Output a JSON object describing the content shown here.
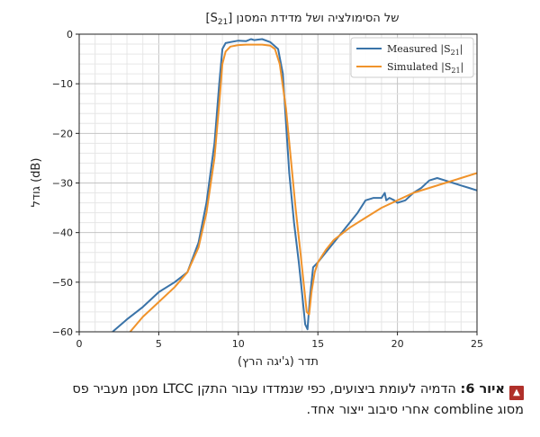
{
  "chart_data": {
    "type": "line",
    "title_main": "של הסימולציה ושל מדידת המסנן",
    "title_sym": "[S",
    "title_sub": "21",
    "title_close": "]",
    "xlabel": "תדר (ג'יגה הרץ)",
    "ylabel": "גודל (dB)",
    "xlim": [
      0,
      25
    ],
    "ylim": [
      -60,
      0
    ],
    "xticks": [
      0,
      5,
      10,
      15,
      20,
      25
    ],
    "yticks": [
      0,
      -10,
      -20,
      -30,
      -40,
      -50,
      -60
    ],
    "grid": true,
    "legend_position": "top-right",
    "series": [
      {
        "name": "Measured |S21|",
        "legend_prefix": "Measured |S",
        "legend_sub": "21",
        "legend_suffix": "|",
        "color": "#3a73a8",
        "x": [
          2.1,
          3.0,
          4.0,
          5.0,
          6.0,
          6.8,
          7.5,
          8.0,
          8.5,
          8.8,
          9.0,
          9.2,
          9.5,
          10.0,
          10.5,
          10.8,
          11.0,
          11.2,
          11.5,
          12.0,
          12.5,
          12.8,
          13.0,
          13.2,
          13.5,
          13.8,
          14.0,
          14.2,
          14.35,
          14.5,
          14.7,
          15.0,
          15.5,
          16.0,
          16.5,
          17.0,
          17.5,
          18.0,
          18.5,
          19.0,
          19.2,
          19.3,
          19.5,
          19.8,
          20.0,
          20.5,
          21.0,
          21.5,
          22.0,
          22.5,
          23.0,
          23.5,
          24.0,
          24.5,
          25.0
        ],
        "y": [
          -60,
          -57.5,
          -55,
          -52,
          -50,
          -48,
          -42,
          -34,
          -22,
          -10,
          -3,
          -1.8,
          -1.6,
          -1.3,
          -1.4,
          -1.0,
          -1.2,
          -1.1,
          -1.0,
          -1.6,
          -3,
          -8,
          -18,
          -28,
          -38,
          -46,
          -52,
          -58.5,
          -59.5,
          -53,
          -47,
          -46,
          -44,
          -42,
          -40,
          -38,
          -36,
          -33.5,
          -33,
          -33,
          -32,
          -33.5,
          -33,
          -33.5,
          -34,
          -33.5,
          -32,
          -31,
          -29.5,
          -29,
          -29.5,
          -30,
          -30.5,
          -31,
          -31.5
        ]
      },
      {
        "name": "Simulated |S21|",
        "legend_prefix": "Simulated |S",
        "legend_sub": "21",
        "legend_suffix": "|",
        "color": "#f0932b",
        "x": [
          3.2,
          4.0,
          5.0,
          6.0,
          6.8,
          7.5,
          8.0,
          8.5,
          8.8,
          9.0,
          9.2,
          9.5,
          10.0,
          10.5,
          11.0,
          11.5,
          12.0,
          12.3,
          12.6,
          13.0,
          13.3,
          13.6,
          13.9,
          14.1,
          14.3,
          14.45,
          14.6,
          14.8,
          15.0,
          15.5,
          16.0,
          17.0,
          18.0,
          19.0,
          20.0,
          21.0,
          22.0,
          23.0,
          24.0,
          25.0
        ],
        "y": [
          -60,
          -57,
          -54,
          -51,
          -48,
          -43,
          -36,
          -25,
          -14,
          -6,
          -3.5,
          -2.5,
          -2.2,
          -2.1,
          -2.1,
          -2.1,
          -2.3,
          -3,
          -6,
          -15,
          -25,
          -35,
          -44,
          -50,
          -56,
          -56.5,
          -52,
          -48,
          -46,
          -43.5,
          -41.5,
          -39,
          -37,
          -35,
          -33.5,
          -32,
          -31,
          -30,
          -29,
          -28
        ]
      }
    ]
  },
  "caption": {
    "icon": "double-chevron-up-icon",
    "label": "איור 6:",
    "text": " הדמיה לעומת ביצועים, כפי שנמדדו עבור התקן LTCC מסנן מעביר פס מסוג combline אחרי סיבוב ייצור אחד."
  }
}
